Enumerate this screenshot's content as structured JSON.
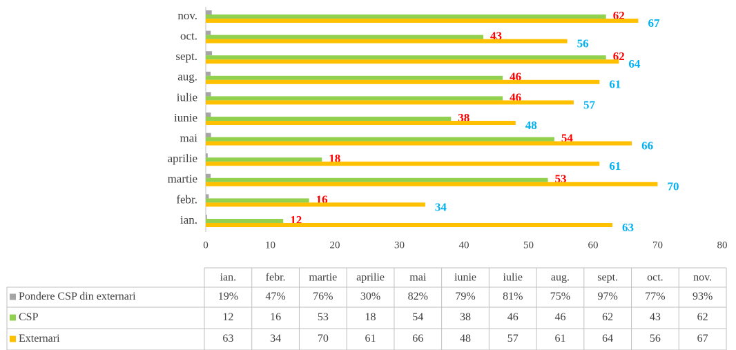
{
  "chart_data": {
    "type": "bar",
    "orientation": "horizontal",
    "categories": [
      "ian.",
      "febr.",
      "martie",
      "aprilie",
      "mai",
      "iunie",
      "iulie",
      "aug.",
      "sept.",
      "oct.",
      "nov."
    ],
    "series": [
      {
        "name": "Pondere CSP din externari",
        "color": "#a5a5a5",
        "values": [
          0.19,
          0.47,
          0.76,
          0.3,
          0.82,
          0.79,
          0.81,
          0.75,
          0.97,
          0.77,
          0.93
        ],
        "value_labels": [
          "19%",
          "47%",
          "76%",
          "30%",
          "82%",
          "79%",
          "81%",
          "75%",
          "97%",
          "77%",
          "93%"
        ],
        "data_labels": false
      },
      {
        "name": "CSP",
        "color": "#92d050",
        "values": [
          12,
          16,
          53,
          18,
          54,
          38,
          46,
          46,
          62,
          43,
          62
        ],
        "data_labels": true,
        "label_color": "#ff0000"
      },
      {
        "name": "Externari",
        "color": "#ffc000",
        "values": [
          63,
          34,
          70,
          61,
          66,
          48,
          57,
          61,
          64,
          56,
          67
        ],
        "data_labels": true,
        "label_color": "#00b0f0"
      }
    ],
    "xlim": [
      0,
      80
    ],
    "xticks": [
      0,
      10,
      20,
      30,
      40,
      50,
      60,
      70,
      80
    ],
    "data_table": true
  }
}
